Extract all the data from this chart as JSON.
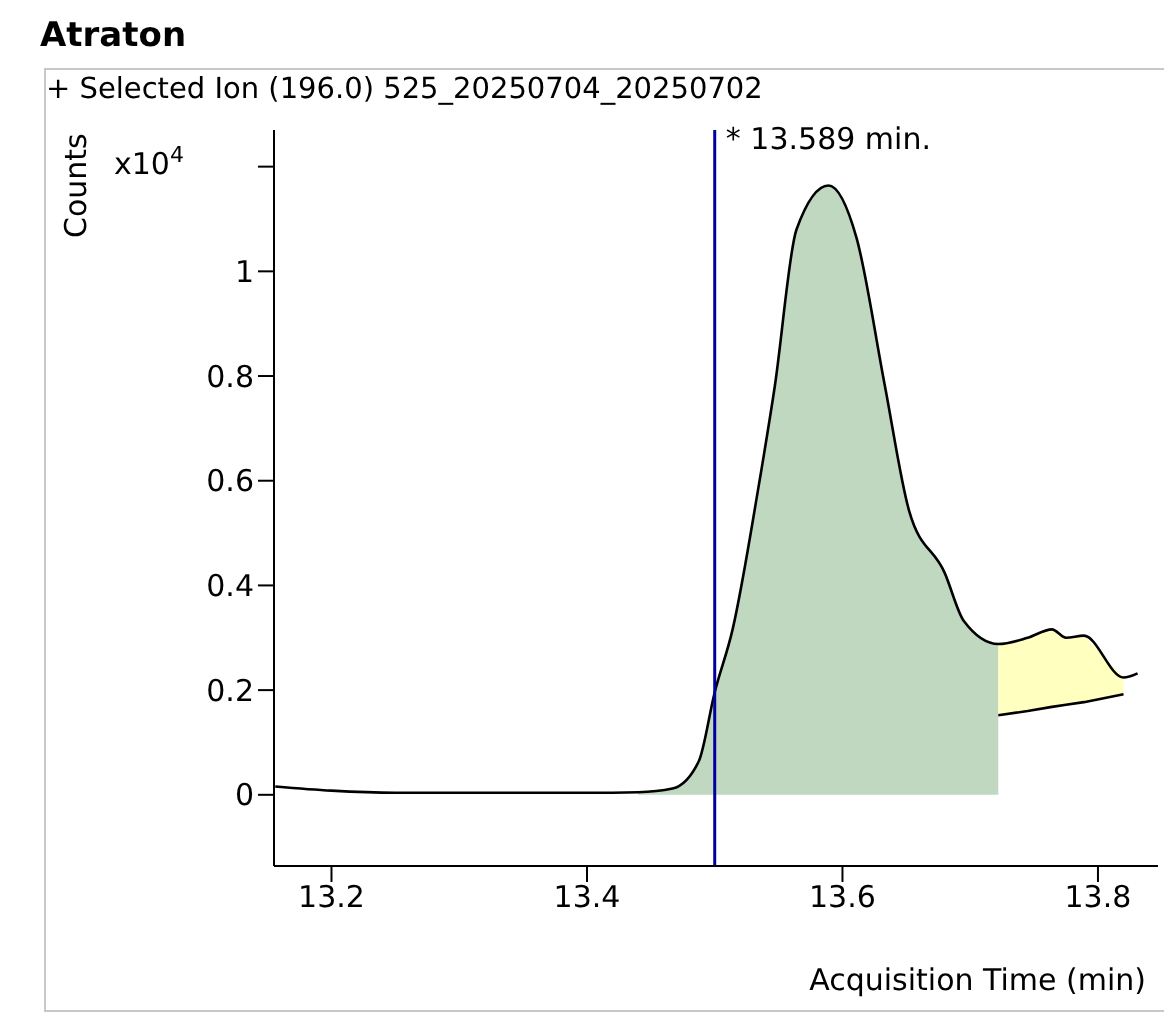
{
  "chart_data": {
    "type": "line",
    "title": "Atraton",
    "subtitle": "+ Selected Ion (196.0) 525_20250704_20250702",
    "xlabel": "Acquisition Time (min)",
    "ylabel": "Counts",
    "annotations": [
      "x10$^{4}$",
      {
        "text": "* 13.589 min.",
        "x": 13.589,
        "y": 1.164
      }
    ],
    "xlim": [
      13.155,
      13.847
    ],
    "xticks": [
      13.2,
      13.4,
      13.6,
      13.8
    ],
    "ylim": [
      -0.136,
      1.27
    ],
    "yticks": [
      0,
      0.2,
      0.4,
      0.6,
      0.8,
      1,
      {
        "value": 1.2,
        "label": null
      }
    ],
    "grid": false,
    "legend": false,
    "marker": "none",
    "line_style": "solid",
    "ref_lines": [
      {
        "axis": "x",
        "value": 13.5,
        "label": null,
        "color": "#0000a0"
      }
    ],
    "series": [
      {
        "type": "area",
        "color": "#c0d8c0",
        "x": [
          13.44,
          13.467,
          13.4875,
          13.5,
          13.514,
          13.534,
          13.547,
          13.564,
          13.589,
          13.611,
          13.633,
          13.652,
          13.68,
          13.695,
          13.722
        ],
        "values": [
          0.005,
          0.012,
          0.064,
          0.196,
          0.316,
          0.584,
          0.78,
          1.08,
          1.164,
          1.064,
          0.784,
          0.544,
          0.424,
          0.332,
          0.288
        ]
      },
      {
        "type": "area",
        "color": "#ffffc0",
        "x": [
          13.722,
          13.745,
          13.764,
          13.775,
          13.789,
          13.82
        ],
        "values": [
          0.288,
          0.3,
          0.316,
          0.3,
          0.304,
          0.224
        ]
      },
      {
        "color": "#000000",
        "x": [
          13.722,
          13.745,
          13.764,
          13.775,
          13.789,
          13.82
        ],
        "values": [
          0.152,
          0.16,
          0.168,
          0.172,
          0.177,
          0.192
        ]
      },
      {
        "type": "line",
        "color": "#000000",
        "x": [
          13.156,
          13.2,
          13.25,
          13.3,
          13.35,
          13.4,
          13.44,
          13.467,
          13.4875,
          13.5,
          13.514,
          13.534,
          13.547,
          13.564,
          13.589,
          13.611,
          13.633,
          13.652,
          13.68,
          13.695,
          13.722,
          13.745,
          13.764,
          13.775,
          13.789,
          13.82,
          13.831
        ],
        "values": [
          0.016,
          0.008,
          0.004,
          0.004,
          0.004,
          0.004,
          0.005,
          0.012,
          0.064,
          0.196,
          0.316,
          0.584,
          0.78,
          1.08,
          1.164,
          1.064,
          0.784,
          0.544,
          0.424,
          0.332,
          0.288,
          0.3,
          0.316,
          0.3,
          0.304,
          0.224,
          0.232
        ]
      }
    ]
  }
}
